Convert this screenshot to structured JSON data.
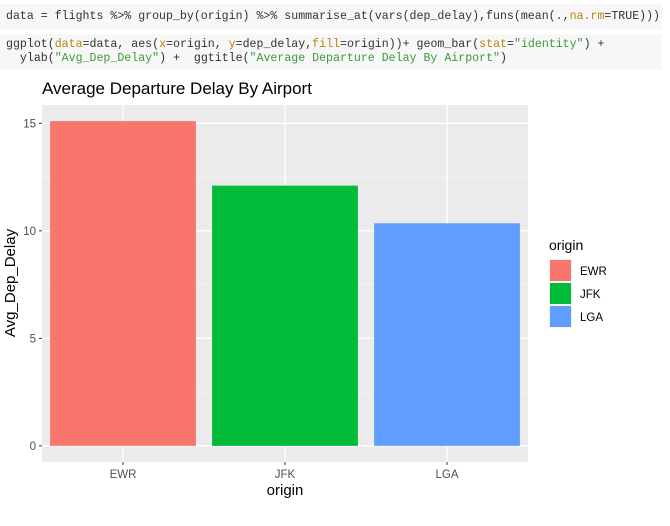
{
  "code": {
    "line1": {
      "p1": "data = flights %>% group_by(origin) %>% summarise_at(vars(dep_delay),funs(mean(.,",
      "arg": "na.rm",
      "p2": "=TRUE)))"
    },
    "line2": {
      "p1": "ggplot(",
      "a1": "data",
      "p2": "=data, aes(",
      "a2": "x",
      "p3": "=origin, ",
      "a3": "y",
      "p4": "=dep_delay,",
      "a4": "fill",
      "p5": "=origin))+ geom_bar(",
      "a5": "stat",
      "p6": "=",
      "s1": "\"identity\"",
      "p7": ") +"
    },
    "line3": {
      "p1": "  ylab(",
      "s1": "\"Avg_Dep_Delay\"",
      "p2": ") +  ggtitle(",
      "s2": "\"Average Departure Delay By Airport\"",
      "p3": ")"
    }
  },
  "chart_data": {
    "type": "bar",
    "title": "Average Departure Delay By Airport",
    "xlabel": "origin",
    "ylabel": "Avg_Dep_Delay",
    "categories": [
      "EWR",
      "JFK",
      "LGA"
    ],
    "values": [
      15.1,
      12.1,
      10.35
    ],
    "colors": [
      "#F8766D",
      "#00BA38",
      "#619CFF"
    ],
    "ylim": [
      -0.75,
      15.85
    ],
    "yticks": [
      0,
      5,
      10,
      15
    ],
    "grid": true,
    "legend": {
      "title": "origin",
      "position": "right",
      "entries": [
        "EWR",
        "JFK",
        "LGA"
      ]
    }
  }
}
